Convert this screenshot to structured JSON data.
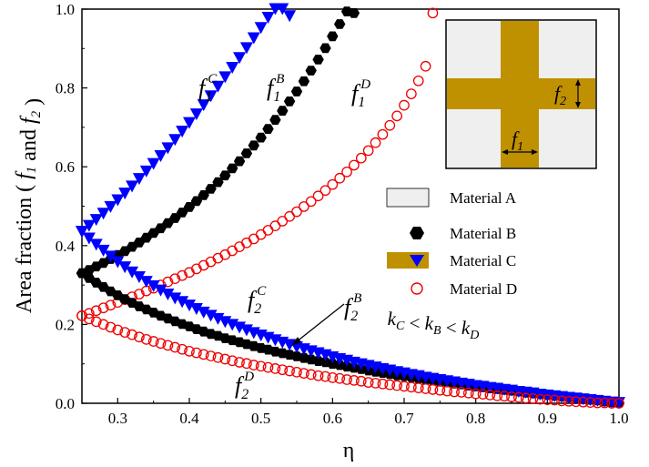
{
  "chart_data": {
    "type": "scatter",
    "xlabel": "η",
    "ylabel": "Area fraction ( f1 and f2 )",
    "xlim": [
      0.25,
      1.0
    ],
    "ylim": [
      0.0,
      1.0
    ],
    "xticks": [
      "0.3",
      "0.4",
      "0.5",
      "0.6",
      "0.7",
      "0.8",
      "0.9",
      "1.0"
    ],
    "yticks": [
      "0.0",
      "0.2",
      "0.4",
      "0.6",
      "0.8",
      "1.0"
    ],
    "grid": false,
    "legend": {
      "placement": "right",
      "entries": [
        {
          "name": "Material A",
          "marker": "swatch-light"
        },
        {
          "name": "Material B",
          "marker": "hexagon"
        },
        {
          "name": "Material C",
          "marker": "triangle-down"
        },
        {
          "name": "Material D",
          "marker": "circle-open"
        }
      ],
      "relation": "kC < kB < kD"
    },
    "annotations": {
      "f1C": {
        "base": "f1",
        "sup": "C"
      },
      "f1B": {
        "base": "f1",
        "sup": "B"
      },
      "f1D": {
        "base": "f1",
        "sup": "D"
      },
      "f2C": {
        "base": "f2",
        "sup": "C"
      },
      "f2B": {
        "base": "f2",
        "sup": "B"
      },
      "f2D": {
        "base": "f2",
        "sup": "D"
      }
    },
    "inset_labels": {
      "f1": "f1",
      "f2": "f2"
    },
    "series": [
      {
        "name": "Material B",
        "role": "f1",
        "color": "#000000",
        "marker": "hexagon",
        "x": [
          0.25,
          0.26,
          0.27,
          0.28,
          0.29,
          0.3,
          0.31,
          0.32,
          0.33,
          0.34,
          0.35,
          0.36,
          0.37,
          0.38,
          0.39,
          0.4,
          0.41,
          0.42,
          0.43,
          0.44,
          0.45,
          0.46,
          0.47,
          0.48,
          0.49,
          0.5,
          0.51,
          0.52,
          0.53,
          0.54,
          0.55,
          0.56,
          0.57,
          0.58,
          0.59,
          0.6,
          0.61,
          0.62,
          0.63
        ],
        "y": [
          0.33,
          0.338,
          0.347,
          0.356,
          0.366,
          0.376,
          0.386,
          0.397,
          0.408,
          0.42,
          0.432,
          0.444,
          0.457,
          0.47,
          0.484,
          0.498,
          0.513,
          0.528,
          0.544,
          0.561,
          0.578,
          0.596,
          0.614,
          0.634,
          0.654,
          0.674,
          0.696,
          0.719,
          0.742,
          0.766,
          0.791,
          0.817,
          0.844,
          0.872,
          0.901,
          0.931,
          0.962,
          0.994,
          0.99
        ]
      },
      {
        "name": "Material C",
        "role": "f1",
        "color": "#0000ff",
        "marker": "triangle-down",
        "x": [
          0.25,
          0.26,
          0.27,
          0.28,
          0.29,
          0.3,
          0.31,
          0.32,
          0.33,
          0.34,
          0.35,
          0.36,
          0.37,
          0.38,
          0.39,
          0.4,
          0.41,
          0.42,
          0.43,
          0.44,
          0.45,
          0.46,
          0.47,
          0.48,
          0.49,
          0.5,
          0.51,
          0.52,
          0.53,
          0.54
        ],
        "y": [
          0.435,
          0.45,
          0.465,
          0.481,
          0.498,
          0.515,
          0.532,
          0.55,
          0.569,
          0.588,
          0.607,
          0.627,
          0.647,
          0.668,
          0.689,
          0.711,
          0.733,
          0.756,
          0.779,
          0.803,
          0.827,
          0.851,
          0.876,
          0.901,
          0.926,
          0.952,
          0.978,
          1.0,
          1.0,
          0.982
        ]
      },
      {
        "name": "Material D",
        "role": "f1",
        "color": "#ee0000",
        "marker": "circle-open",
        "x": [
          0.25,
          0.26,
          0.27,
          0.28,
          0.29,
          0.3,
          0.31,
          0.32,
          0.33,
          0.34,
          0.35,
          0.36,
          0.37,
          0.38,
          0.39,
          0.4,
          0.41,
          0.42,
          0.43,
          0.44,
          0.45,
          0.46,
          0.47,
          0.48,
          0.49,
          0.5,
          0.51,
          0.52,
          0.53,
          0.54,
          0.55,
          0.56,
          0.57,
          0.58,
          0.59,
          0.6,
          0.61,
          0.62,
          0.63,
          0.64,
          0.65,
          0.66,
          0.67,
          0.68,
          0.69,
          0.7,
          0.71,
          0.72,
          0.73,
          0.74
        ],
        "y": [
          0.222,
          0.228,
          0.235,
          0.242,
          0.249,
          0.256,
          0.263,
          0.27,
          0.277,
          0.285,
          0.292,
          0.3,
          0.308,
          0.316,
          0.324,
          0.332,
          0.341,
          0.35,
          0.359,
          0.368,
          0.377,
          0.387,
          0.397,
          0.407,
          0.417,
          0.428,
          0.439,
          0.45,
          0.462,
          0.474,
          0.486,
          0.499,
          0.512,
          0.526,
          0.54,
          0.555,
          0.571,
          0.587,
          0.604,
          0.622,
          0.641,
          0.661,
          0.682,
          0.705,
          0.729,
          0.756,
          0.785,
          0.818,
          0.855,
          0.99
        ]
      },
      {
        "name": "Material B",
        "role": "f2",
        "color": "#000000",
        "marker": "hexagon",
        "x": [
          0.25,
          0.26,
          0.27,
          0.28,
          0.29,
          0.3,
          0.31,
          0.32,
          0.33,
          0.34,
          0.35,
          0.36,
          0.37,
          0.38,
          0.39,
          0.4,
          0.41,
          0.42,
          0.43,
          0.44,
          0.45,
          0.46,
          0.47,
          0.48,
          0.49,
          0.5,
          0.51,
          0.52,
          0.53,
          0.54,
          0.55,
          0.56,
          0.57,
          0.58,
          0.59,
          0.6,
          0.61,
          0.62,
          0.63,
          0.64,
          0.65,
          0.66,
          0.67,
          0.68,
          0.69,
          0.7,
          0.71,
          0.72,
          0.73,
          0.74,
          0.75,
          0.76,
          0.77,
          0.78,
          0.79,
          0.8,
          0.81,
          0.82,
          0.83,
          0.84,
          0.85,
          0.86,
          0.87,
          0.88,
          0.89,
          0.9,
          0.91,
          0.92,
          0.93,
          0.94,
          0.95,
          0.96,
          0.97,
          0.98,
          0.99,
          1.0
        ],
        "y": [
          0.33,
          0.318,
          0.306,
          0.295,
          0.284,
          0.274,
          0.264,
          0.255,
          0.246,
          0.238,
          0.23,
          0.222,
          0.215,
          0.208,
          0.201,
          0.195,
          0.188,
          0.182,
          0.176,
          0.171,
          0.165,
          0.16,
          0.155,
          0.15,
          0.145,
          0.14,
          0.136,
          0.131,
          0.127,
          0.123,
          0.119,
          0.115,
          0.111,
          0.107,
          0.104,
          0.1,
          0.097,
          0.093,
          0.09,
          0.087,
          0.083,
          0.08,
          0.077,
          0.074,
          0.071,
          0.069,
          0.066,
          0.063,
          0.06,
          0.058,
          0.055,
          0.053,
          0.05,
          0.048,
          0.045,
          0.043,
          0.041,
          0.038,
          0.036,
          0.034,
          0.032,
          0.03,
          0.027,
          0.025,
          0.023,
          0.021,
          0.019,
          0.017,
          0.015,
          0.013,
          0.011,
          0.009,
          0.007,
          0.005,
          0.003,
          0.001
        ]
      },
      {
        "name": "Material C",
        "role": "f2",
        "color": "#0000ff",
        "marker": "triangle-down",
        "x": [
          0.25,
          0.26,
          0.27,
          0.28,
          0.29,
          0.3,
          0.31,
          0.32,
          0.33,
          0.34,
          0.35,
          0.36,
          0.37,
          0.38,
          0.39,
          0.4,
          0.41,
          0.42,
          0.43,
          0.44,
          0.45,
          0.46,
          0.47,
          0.48,
          0.49,
          0.5,
          0.51,
          0.52,
          0.53,
          0.54,
          0.55,
          0.56,
          0.57,
          0.58,
          0.59,
          0.6,
          0.61,
          0.62,
          0.63,
          0.64,
          0.65,
          0.66,
          0.67,
          0.68,
          0.69,
          0.7,
          0.71,
          0.72,
          0.73,
          0.74,
          0.75,
          0.76,
          0.77,
          0.78,
          0.79,
          0.8,
          0.81,
          0.82,
          0.83,
          0.84,
          0.85,
          0.86,
          0.87,
          0.88,
          0.89,
          0.9,
          0.91,
          0.92,
          0.93,
          0.94,
          0.95,
          0.96,
          0.97,
          0.98,
          0.99,
          1.0
        ],
        "y": [
          0.435,
          0.418,
          0.402,
          0.387,
          0.372,
          0.358,
          0.345,
          0.332,
          0.32,
          0.308,
          0.297,
          0.286,
          0.276,
          0.266,
          0.257,
          0.248,
          0.239,
          0.23,
          0.222,
          0.214,
          0.206,
          0.199,
          0.192,
          0.185,
          0.178,
          0.172,
          0.166,
          0.16,
          0.154,
          0.148,
          0.142,
          0.137,
          0.132,
          0.127,
          0.122,
          0.117,
          0.112,
          0.108,
          0.103,
          0.099,
          0.095,
          0.091,
          0.087,
          0.083,
          0.079,
          0.076,
          0.072,
          0.069,
          0.065,
          0.062,
          0.059,
          0.056,
          0.053,
          0.05,
          0.047,
          0.044,
          0.042,
          0.039,
          0.037,
          0.034,
          0.032,
          0.029,
          0.027,
          0.025,
          0.022,
          0.02,
          0.018,
          0.016,
          0.014,
          0.012,
          0.01,
          0.008,
          0.006,
          0.004,
          0.002,
          0.001
        ]
      },
      {
        "name": "Material D",
        "role": "f2",
        "color": "#ee0000",
        "marker": "circle-open",
        "x": [
          0.25,
          0.26,
          0.27,
          0.28,
          0.29,
          0.3,
          0.31,
          0.32,
          0.33,
          0.34,
          0.35,
          0.36,
          0.37,
          0.38,
          0.39,
          0.4,
          0.41,
          0.42,
          0.43,
          0.44,
          0.45,
          0.46,
          0.47,
          0.48,
          0.49,
          0.5,
          0.51,
          0.52,
          0.53,
          0.54,
          0.55,
          0.56,
          0.57,
          0.58,
          0.59,
          0.6,
          0.61,
          0.62,
          0.63,
          0.64,
          0.65,
          0.66,
          0.67,
          0.68,
          0.69,
          0.7,
          0.71,
          0.72,
          0.73,
          0.74,
          0.75,
          0.76,
          0.77,
          0.78,
          0.79,
          0.8,
          0.81,
          0.82,
          0.83,
          0.84,
          0.85,
          0.86,
          0.87,
          0.88,
          0.89,
          0.9,
          0.91,
          0.92,
          0.93,
          0.94,
          0.95,
          0.96,
          0.97,
          0.98,
          0.99,
          1.0
        ],
        "y": [
          0.222,
          0.214,
          0.207,
          0.2,
          0.193,
          0.186,
          0.18,
          0.174,
          0.168,
          0.162,
          0.157,
          0.152,
          0.147,
          0.142,
          0.137,
          0.132,
          0.128,
          0.124,
          0.12,
          0.116,
          0.112,
          0.108,
          0.104,
          0.101,
          0.097,
          0.094,
          0.091,
          0.088,
          0.085,
          0.082,
          0.079,
          0.076,
          0.073,
          0.07,
          0.068,
          0.065,
          0.063,
          0.06,
          0.058,
          0.056,
          0.053,
          0.051,
          0.049,
          0.047,
          0.045,
          0.043,
          0.041,
          0.039,
          0.037,
          0.035,
          0.033,
          0.031,
          0.029,
          0.028,
          0.026,
          0.024,
          0.023,
          0.021,
          0.019,
          0.018,
          0.016,
          0.015,
          0.013,
          0.012,
          0.01,
          0.009,
          0.008,
          0.006,
          0.005,
          0.004,
          0.003,
          0.002,
          0.001,
          0.001,
          0.0,
          0.0
        ]
      }
    ]
  }
}
